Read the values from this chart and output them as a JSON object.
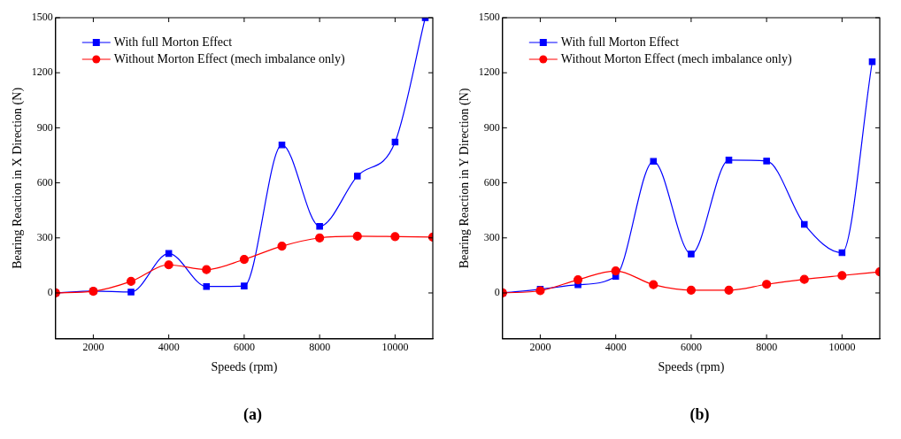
{
  "chart_data": [
    {
      "type": "line",
      "xlabel": "Speeds (rpm)",
      "ylabel": "Bearing Reaction in X Direction (N)",
      "xlim": [
        1000,
        11000
      ],
      "xticks": [
        2000,
        4000,
        6000,
        8000,
        10000
      ],
      "ylim": [
        -250,
        1500
      ],
      "yticks": [
        0,
        300,
        600,
        900,
        1200,
        1500
      ],
      "grid": false,
      "legend": "top left",
      "annotations": [
        "(a)"
      ],
      "series": [
        {
          "name": "With full Morton Effect",
          "color": "#0000ff",
          "marker": "square",
          "x": [
            1000,
            2000,
            3000,
            4000,
            5000,
            6000,
            7000,
            8000,
            9000,
            10000,
            10800
          ],
          "values": [
            0,
            10,
            5,
            215,
            35,
            38,
            807,
            363,
            637,
            822,
            1500
          ]
        },
        {
          "name": "Without Morton Effect (mech imbalance only)",
          "color": "#ff0000",
          "marker": "circle",
          "x": [
            1000,
            2000,
            3000,
            4000,
            5000,
            6000,
            7000,
            8000,
            9000,
            10000,
            11000
          ],
          "values": [
            0,
            9,
            63,
            153,
            127,
            183,
            255,
            300,
            309,
            307,
            304
          ]
        }
      ]
    },
    {
      "type": "line",
      "xlabel": "Speeds (rpm)",
      "ylabel": "Bearing Reaction in Y Direction (N)",
      "xlim": [
        1000,
        11000
      ],
      "xticks": [
        2000,
        4000,
        6000,
        8000,
        10000
      ],
      "ylim": [
        -250,
        1500
      ],
      "yticks": [
        0,
        300,
        600,
        900,
        1200,
        1500
      ],
      "grid": false,
      "legend": "top left",
      "annotations": [
        "(b)"
      ],
      "series": [
        {
          "name": "With full Morton Effect",
          "color": "#0000ff",
          "marker": "square",
          "x": [
            1000,
            2000,
            3000,
            4000,
            5000,
            6000,
            7000,
            8000,
            9000,
            10000,
            10800
          ],
          "values": [
            0,
            20,
            45,
            90,
            717,
            212,
            724,
            719,
            374,
            219,
            1260
          ]
        },
        {
          "name": "Without Morton Effect (mech imbalance only)",
          "color": "#ff0000",
          "marker": "circle",
          "x": [
            1000,
            2000,
            3000,
            4000,
            5000,
            6000,
            7000,
            8000,
            9000,
            10000,
            11000
          ],
          "values": [
            0,
            12,
            72,
            120,
            45,
            15,
            15,
            47,
            74,
            95,
            115
          ]
        }
      ]
    }
  ]
}
